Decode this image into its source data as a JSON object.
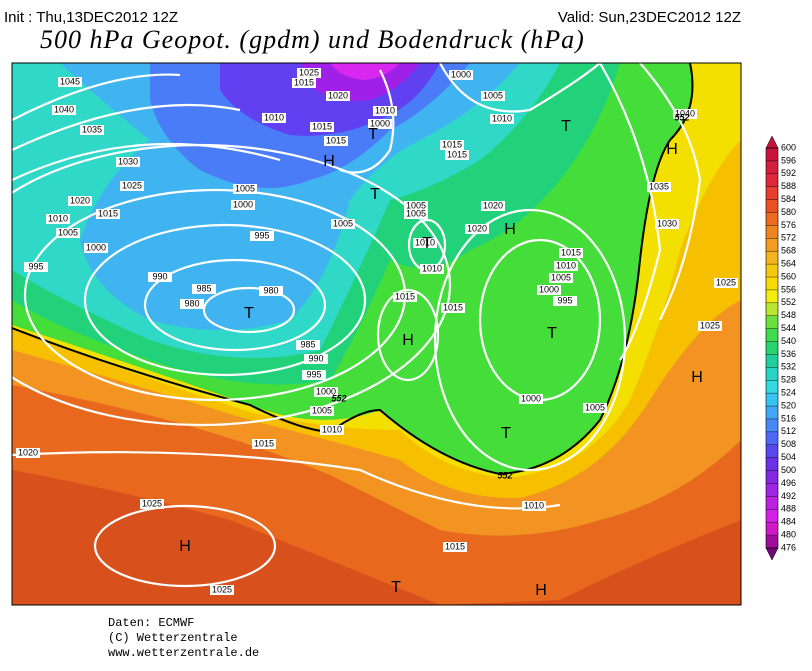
{
  "header": {
    "init": "Init : Thu,13DEC2012 12Z",
    "valid": "Valid: Sun,23DEC2012 12Z",
    "title": "500 hPa Geopot. (gpdm) und Bodendruck (hPa)"
  },
  "colorbar": {
    "ticks": [
      600,
      596,
      592,
      588,
      584,
      580,
      576,
      572,
      568,
      564,
      560,
      556,
      552,
      548,
      544,
      540,
      536,
      532,
      528,
      524,
      520,
      516,
      512,
      508,
      504,
      500,
      496,
      492,
      488,
      484,
      480,
      476
    ]
  },
  "isobar_labels": [
    1045,
    1040,
    1035,
    1030,
    1025,
    1020,
    1015,
    1010,
    1005,
    1000,
    995,
    990,
    985,
    980,
    980,
    985,
    990,
    995,
    1000,
    1005,
    1010,
    1015,
    1020,
    1025,
    1025,
    1025,
    1015,
    1020,
    1010,
    1015,
    1015,
    1010,
    1000,
    1005,
    1000,
    995,
    1005,
    1005,
    1005,
    1020,
    1020,
    1010,
    1010,
    1015,
    1015,
    1015,
    1010,
    1005,
    1000,
    995,
    1000,
    1005,
    1015,
    1015,
    1010,
    1005,
    1000,
    1040,
    1035,
    1030,
    1025,
    1025,
    1010,
    1015
  ],
  "height_labels": [
    552,
    552,
    552
  ],
  "pressure_centers": [
    "H",
    "T",
    "T",
    "T",
    "H",
    "H",
    "T",
    "T",
    "H",
    "T",
    "H",
    "T",
    "H",
    "T",
    "H"
  ],
  "footer": [
    "Daten: ECMWF",
    "(C) Wetterzentrale",
    "www.wetterzentrale.de"
  ]
}
